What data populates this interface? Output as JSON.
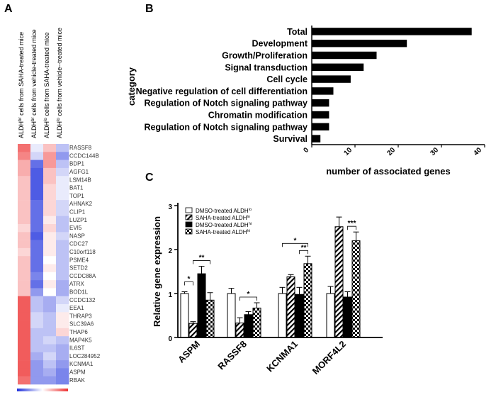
{
  "panels": {
    "a": "A",
    "b": "B",
    "c": "C"
  },
  "chart_data": [
    {
      "type": "heatmap",
      "columns": [
        {
          "base": "ALDH",
          "sup": "br",
          "rest": " cells from SAHA-treated mice"
        },
        {
          "base": "ALDH",
          "sup": "br",
          "rest": " cells from vehicle-treated mice"
        },
        {
          "base": "ALDH",
          "sup": "lo",
          "rest": " cells from SAHA-treated mice"
        },
        {
          "base": "ALDH",
          "sup": "lo",
          "rest": " cells from vehicle--treated mice"
        }
      ],
      "genes": [
        "RASSF8",
        "CCDC144B",
        "BDP1",
        "AGFG1",
        "LSM14B",
        "BAT1",
        "TOP1",
        "AHNAK2",
        "CLIP1",
        "LUZP1",
        "EVI5",
        "NASP",
        "CDC27",
        "C10orf118",
        "PSME4",
        "SETD2",
        "CCDC88A",
        "ATRX",
        "BOD1L",
        "CCDC132",
        "EEA1",
        "THRAP3",
        "SLC39A6",
        "THAP6",
        "MAP4K5",
        "IL6ST",
        "LOC284952",
        "KCNMA1",
        "ASPM",
        "RBAK"
      ],
      "values": [
        [
          0.7,
          -0.1,
          0.3,
          -0.3
        ],
        [
          0.6,
          -0.2,
          0.5,
          -0.5
        ],
        [
          0.4,
          -0.7,
          0.5,
          -0.3
        ],
        [
          0.4,
          -0.8,
          0.3,
          -0.2
        ],
        [
          0.3,
          -0.8,
          0.3,
          -0.1
        ],
        [
          0.3,
          -0.8,
          0.2,
          -0.1
        ],
        [
          0.3,
          -0.8,
          0.2,
          -0.1
        ],
        [
          0.3,
          -0.7,
          0.2,
          -0.2
        ],
        [
          0.3,
          -0.7,
          0.2,
          -0.2
        ],
        [
          0.3,
          -0.7,
          0.1,
          -0.3
        ],
        [
          0.2,
          -0.7,
          0.2,
          -0.3
        ],
        [
          0.3,
          -0.8,
          0.1,
          -0.2
        ],
        [
          0.3,
          -0.7,
          0.1,
          -0.3
        ],
        [
          0.2,
          -0.7,
          0.1,
          -0.3
        ],
        [
          0.3,
          -0.7,
          0.0,
          -0.3
        ],
        [
          0.3,
          -0.7,
          0.1,
          -0.3
        ],
        [
          0.3,
          -0.6,
          0.0,
          -0.3
        ],
        [
          0.3,
          -0.7,
          0.1,
          -0.4
        ],
        [
          0.3,
          -0.5,
          0.0,
          -0.4
        ],
        [
          0.8,
          -0.3,
          -0.4,
          -0.2
        ],
        [
          0.8,
          -0.3,
          -0.4,
          -0.1
        ],
        [
          0.8,
          -0.2,
          -0.3,
          0.1
        ],
        [
          0.8,
          -0.2,
          -0.3,
          0.1
        ],
        [
          0.8,
          -0.3,
          -0.3,
          0.2
        ],
        [
          0.8,
          -0.3,
          -0.2,
          -0.3
        ],
        [
          0.8,
          -0.3,
          -0.3,
          -0.4
        ],
        [
          0.8,
          -0.4,
          -0.2,
          -0.4
        ],
        [
          0.8,
          -0.5,
          -0.3,
          -0.5
        ],
        [
          0.8,
          -0.5,
          -0.4,
          -0.6
        ],
        [
          0.7,
          -0.5,
          -0.5,
          -0.6
        ]
      ],
      "colors": {
        "low": "#2233dd",
        "mid": "#ffffff",
        "high": "#ee3333"
      }
    },
    {
      "type": "bar",
      "orientation": "horizontal",
      "categories": [
        "Total",
        "Development",
        "Growth/Proliferation",
        "Signal transduction",
        "Cell cycle",
        "Negative regulation of cell differentiation",
        "Regulation of Notch signaling pathway",
        "Chromatin modification",
        "Regulation of Notch signaling pathway",
        "Survival"
      ],
      "values": [
        37,
        22,
        15,
        12,
        9,
        5,
        4,
        4,
        4,
        2
      ],
      "xlabel": "number of associated genes",
      "ylabel": "category",
      "xlim": [
        0,
        40
      ],
      "xticks": [
        "0",
        "10",
        "20",
        "30",
        "40"
      ],
      "bar_color": "#000000"
    },
    {
      "type": "bar",
      "categories": [
        "ASPM",
        "RASSF8",
        "KCNMA1",
        "MORF4L2"
      ],
      "ylabel": "Relative gene expression",
      "ylim": [
        0,
        3
      ],
      "yticks": [
        "0",
        "1",
        "2",
        "3"
      ],
      "series": [
        {
          "name": {
            "base": "DMSO-treated ALDH",
            "sup": "lo"
          },
          "pattern": "white",
          "values": [
            1.0,
            1.0,
            1.0,
            1.0
          ],
          "errors": [
            0.04,
            0.12,
            0.14,
            0.16
          ]
        },
        {
          "name": {
            "base": "SAHA-treated ALDH",
            "sup": "lo"
          },
          "pattern": "hatch",
          "values": [
            0.32,
            0.33,
            1.38,
            2.52
          ],
          "errors": [
            0.04,
            0.12,
            0.05,
            0.22
          ]
        },
        {
          "name": {
            "base": "DMSO-treated ALDH",
            "sup": "hi"
          },
          "pattern": "black",
          "values": [
            1.45,
            0.52,
            0.98,
            0.92
          ],
          "errors": [
            0.17,
            0.07,
            0.16,
            0.12
          ]
        },
        {
          "name": {
            "base": "SAHA-treated ALDH",
            "sup": "hi"
          },
          "pattern": "check",
          "values": [
            0.85,
            0.67,
            1.68,
            2.2
          ],
          "errors": [
            0.17,
            0.12,
            0.17,
            0.2
          ]
        }
      ],
      "significance": [
        {
          "group": 0,
          "from": 0,
          "to": 1,
          "label": "*"
        },
        {
          "group": 0,
          "from": 1,
          "to": 3,
          "label": "**"
        },
        {
          "group": 1,
          "from": 1,
          "to": 3,
          "label": "*"
        },
        {
          "group": 2,
          "from": 0,
          "to": 3,
          "label": "*"
        },
        {
          "group": 2,
          "from": 2,
          "to": 3,
          "label": "**"
        },
        {
          "group": 3,
          "from": 2,
          "to": 3,
          "label": "***"
        }
      ]
    }
  ]
}
